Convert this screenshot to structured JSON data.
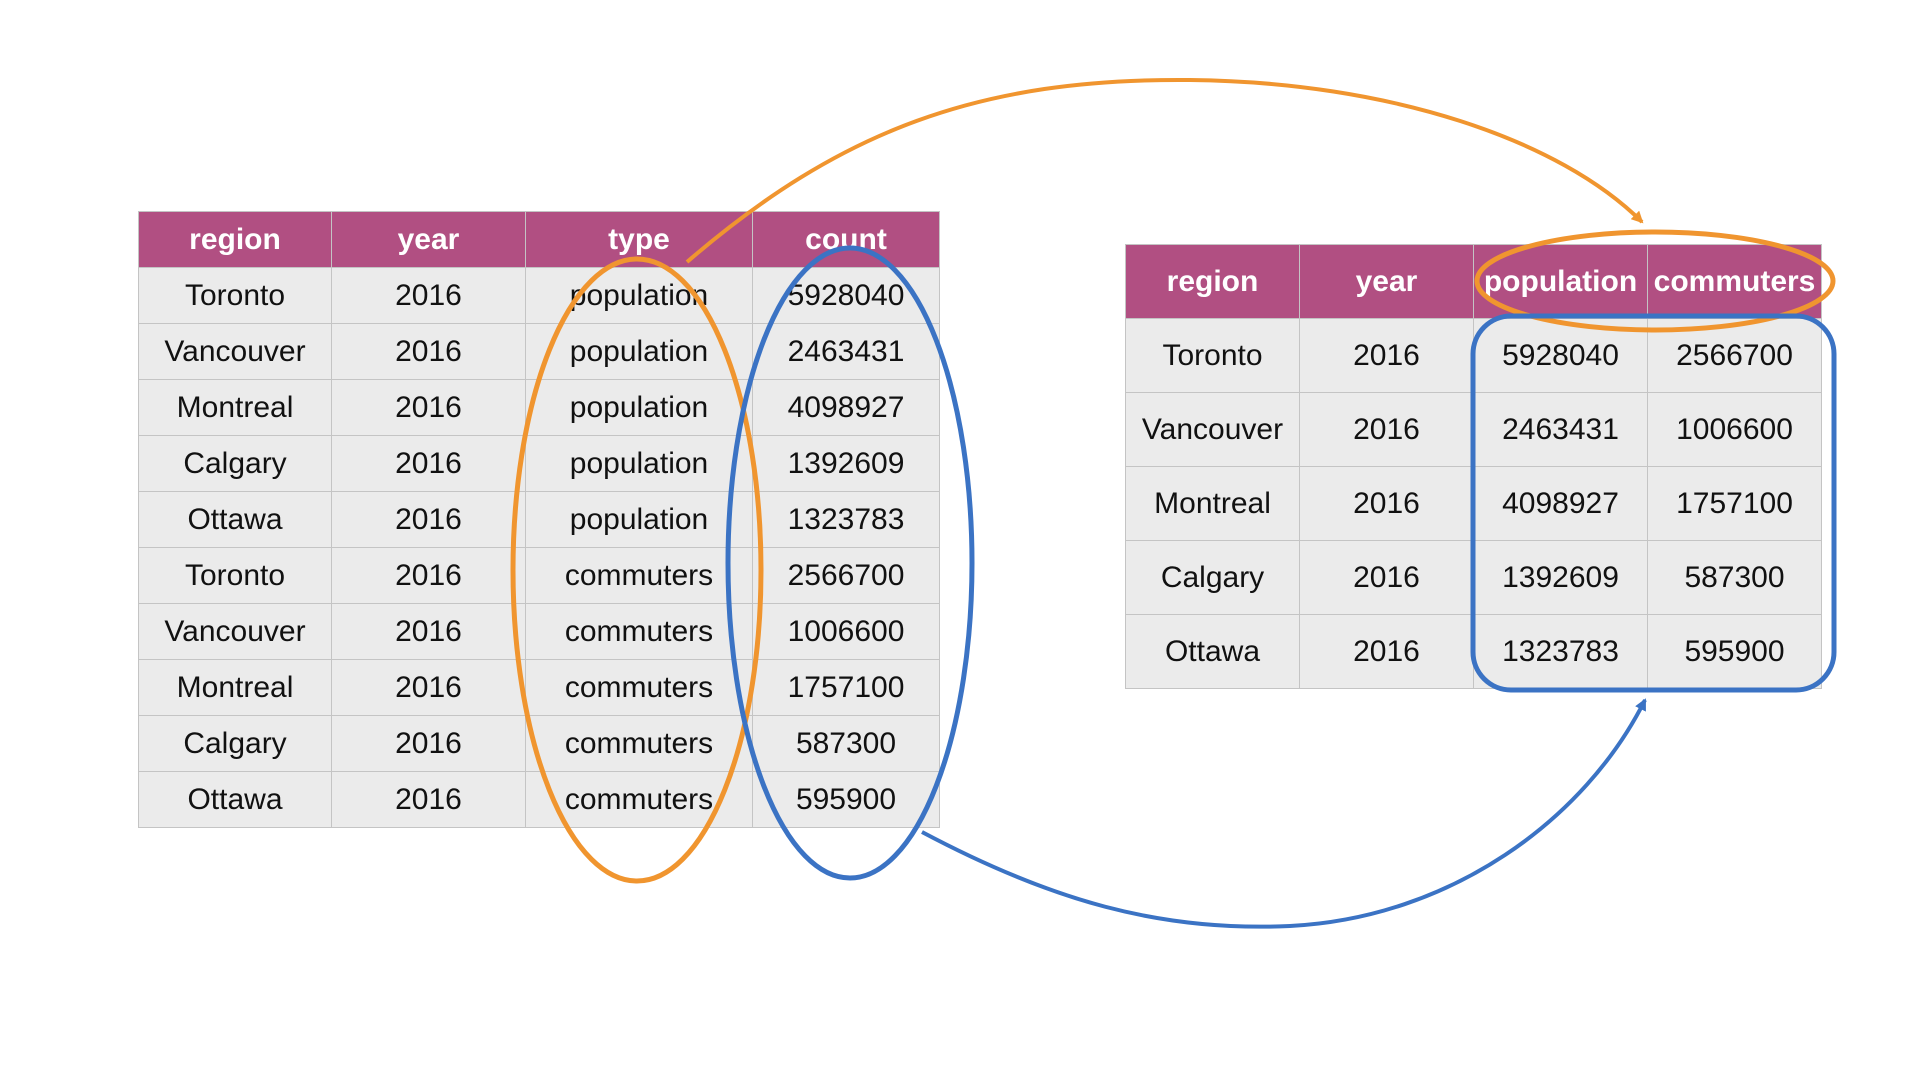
{
  "long_table": {
    "headers": [
      "region",
      "year",
      "type",
      "count"
    ],
    "rows": [
      [
        "Toronto",
        "2016",
        "population",
        "5928040"
      ],
      [
        "Vancouver",
        "2016",
        "population",
        "2463431"
      ],
      [
        "Montreal",
        "2016",
        "population",
        "4098927"
      ],
      [
        "Calgary",
        "2016",
        "population",
        "1392609"
      ],
      [
        "Ottawa",
        "2016",
        "population",
        "1323783"
      ],
      [
        "Toronto",
        "2016",
        "commuters",
        "2566700"
      ],
      [
        "Vancouver",
        "2016",
        "commuters",
        "1006600"
      ],
      [
        "Montreal",
        "2016",
        "commuters",
        "1757100"
      ],
      [
        "Calgary",
        "2016",
        "commuters",
        "587300"
      ],
      [
        "Ottawa",
        "2016",
        "commuters",
        "595900"
      ]
    ]
  },
  "wide_table": {
    "headers": [
      "region",
      "year",
      "population",
      "commuters"
    ],
    "rows": [
      [
        "Toronto",
        "2016",
        "5928040",
        "2566700"
      ],
      [
        "Vancouver",
        "2016",
        "2463431",
        "1006600"
      ],
      [
        "Montreal",
        "2016",
        "4098927",
        "1757100"
      ],
      [
        "Calgary",
        "2016",
        "1392609",
        "587300"
      ],
      [
        "Ottawa",
        "2016",
        "1323783",
        "595900"
      ]
    ]
  },
  "colors": {
    "header_bg": "#b14f82",
    "cell_bg": "#ebebeb",
    "names_highlight": "#f0952f",
    "values_highlight": "#3b73c4"
  }
}
